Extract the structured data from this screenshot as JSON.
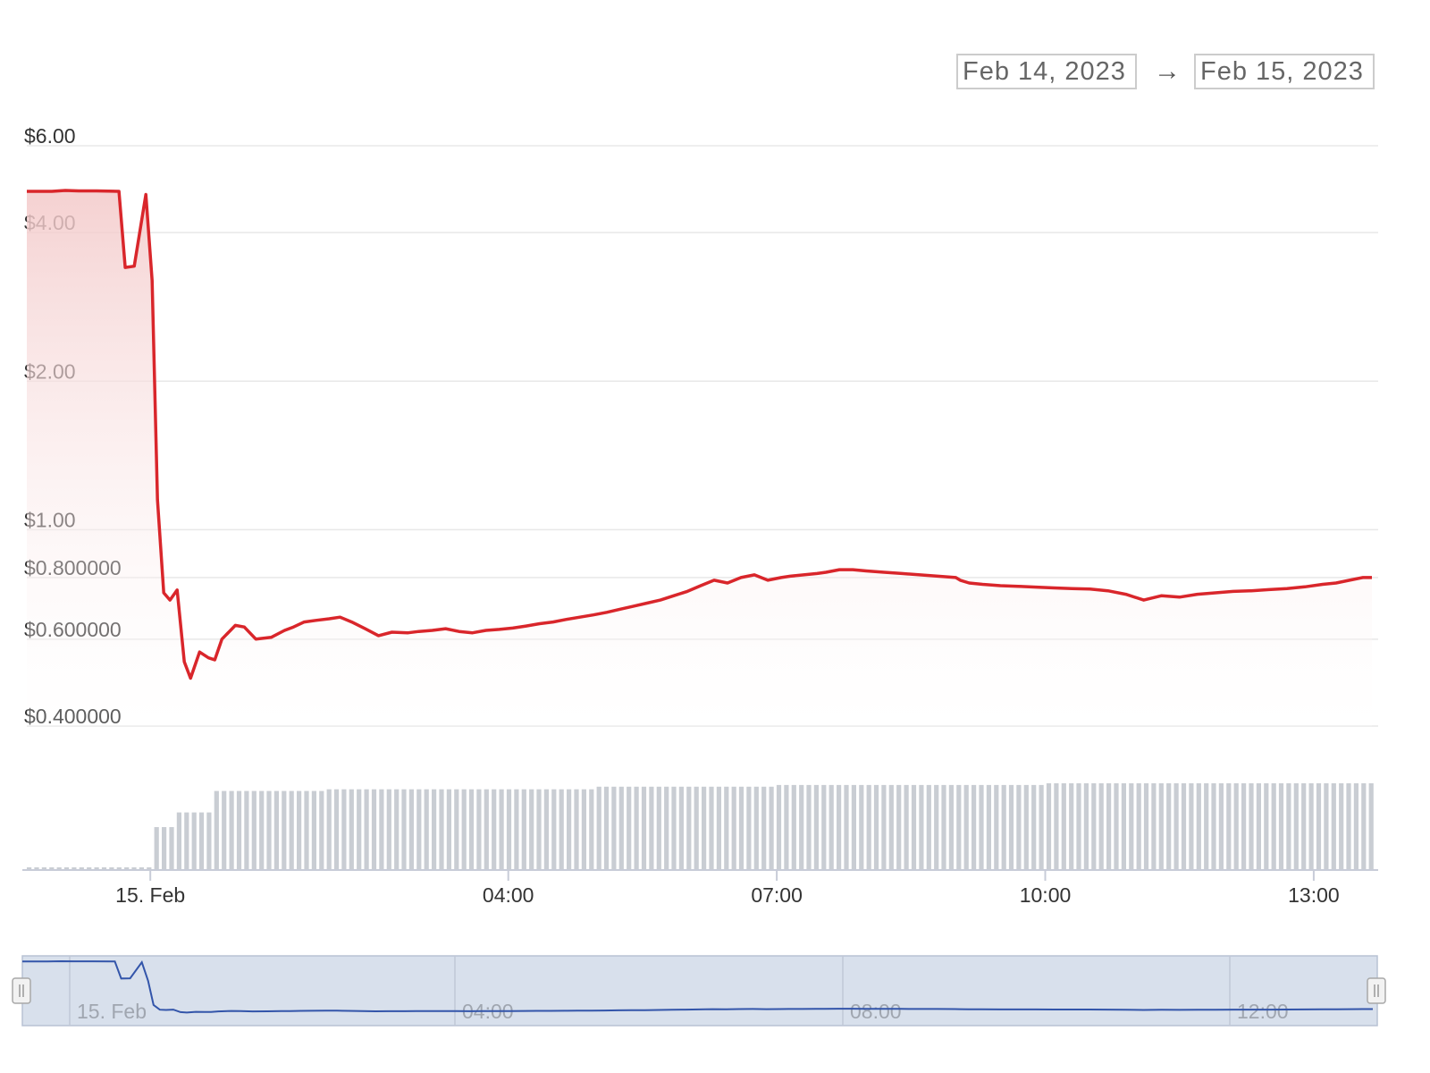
{
  "range_selector": {
    "from": "Feb 14, 2023",
    "arrow": "→",
    "to": "Feb 15, 2023"
  },
  "colors": {
    "line": "#d9262b",
    "area_top": "#f6d2d2",
    "volume": "#c9cdd3",
    "navigator_bg": "#d8e0ec",
    "navigator_line": "#3355aa",
    "grid": "#e8e8e8"
  },
  "chart_data": {
    "type": "line",
    "title": "",
    "xlabel": "",
    "ylabel": "",
    "y_scale": "log",
    "y_ticks": [
      {
        "value": 6.0,
        "label": "$6.00"
      },
      {
        "value": 4.0,
        "label": "$4.00"
      },
      {
        "value": 2.0,
        "label": "$2.00"
      },
      {
        "value": 1.0,
        "label": "$1.00"
      },
      {
        "value": 0.8,
        "label": "$0.800000"
      },
      {
        "value": 0.6,
        "label": "$0.600000"
      },
      {
        "value": 0.4,
        "label": "$0.400000"
      }
    ],
    "x_ticks": [
      {
        "hour": 0,
        "label": "15. Feb"
      },
      {
        "hour": 4,
        "label": "04:00"
      },
      {
        "hour": 7,
        "label": "07:00"
      },
      {
        "hour": 10,
        "label": "10:00"
      },
      {
        "hour": 13,
        "label": "13:00"
      }
    ],
    "x_range_hours": [
      -1.38,
      13.7
    ],
    "series": [
      {
        "type": "line",
        "x_hours": [
          -1.38,
          -1.1,
          -0.95,
          -0.8,
          -0.6,
          -0.35,
          -0.28,
          -0.18,
          -0.05,
          0.02,
          0.08,
          0.15,
          0.22,
          0.3,
          0.38,
          0.45,
          0.55,
          0.65,
          0.72,
          0.8,
          0.95,
          1.05,
          1.18,
          1.35,
          1.5,
          1.6,
          1.72,
          1.85,
          2.0,
          2.12,
          2.25,
          2.4,
          2.55,
          2.7,
          2.88,
          3.0,
          3.15,
          3.3,
          3.45,
          3.6,
          3.75,
          3.9,
          4.05,
          4.2,
          4.35,
          4.5,
          4.65,
          4.8,
          4.95,
          5.1,
          5.25,
          5.4,
          5.55,
          5.7,
          5.85,
          6.0,
          6.15,
          6.3,
          6.45,
          6.6,
          6.75,
          6.9,
          7.05,
          7.15,
          7.3,
          7.45,
          7.55,
          7.7,
          7.85,
          8.0,
          8.2,
          8.4,
          8.6,
          8.8,
          9.0,
          9.05,
          9.15,
          9.3,
          9.5,
          9.7,
          9.9,
          10.1,
          10.3,
          10.5,
          10.7,
          10.9,
          11.1,
          11.3,
          11.5,
          11.7,
          11.9,
          12.1,
          12.3,
          12.5,
          12.7,
          12.9,
          13.1,
          13.25,
          13.4,
          13.55,
          13.65
        ],
        "y": [
          4.85,
          4.85,
          4.87,
          4.86,
          4.86,
          4.85,
          3.4,
          3.42,
          4.78,
          3.2,
          1.15,
          0.745,
          0.72,
          0.755,
          0.54,
          0.5,
          0.565,
          0.55,
          0.545,
          0.6,
          0.64,
          0.635,
          0.6,
          0.605,
          0.625,
          0.635,
          0.65,
          0.655,
          0.66,
          0.665,
          0.65,
          0.63,
          0.61,
          0.62,
          0.618,
          0.622,
          0.625,
          0.63,
          0.622,
          0.618,
          0.625,
          0.628,
          0.632,
          0.638,
          0.645,
          0.65,
          0.658,
          0.665,
          0.672,
          0.68,
          0.69,
          0.7,
          0.71,
          0.72,
          0.735,
          0.75,
          0.77,
          0.79,
          0.78,
          0.8,
          0.81,
          0.79,
          0.8,
          0.805,
          0.81,
          0.815,
          0.82,
          0.83,
          0.83,
          0.825,
          0.82,
          0.815,
          0.81,
          0.805,
          0.8,
          0.79,
          0.78,
          0.775,
          0.77,
          0.768,
          0.765,
          0.762,
          0.76,
          0.758,
          0.752,
          0.74,
          0.72,
          0.735,
          0.73,
          0.74,
          0.745,
          0.75,
          0.752,
          0.756,
          0.76,
          0.766,
          0.775,
          0.78,
          0.79,
          0.8,
          0.8
        ]
      },
      {
        "type": "volume",
        "bar_count": 180,
        "relative_levels": [
          {
            "from_hour": -1.38,
            "to_hour": 0.05,
            "level": 0.02
          },
          {
            "from_hour": 0.05,
            "to_hour": 0.3,
            "level": 0.49
          },
          {
            "from_hour": 0.3,
            "to_hour": 0.7,
            "level": 0.66
          },
          {
            "from_hour": 0.7,
            "to_hour": 2.0,
            "level": 0.91
          },
          {
            "from_hour": 2.0,
            "to_hour": 5.0,
            "level": 0.93
          },
          {
            "from_hour": 5.0,
            "to_hour": 7.0,
            "level": 0.96
          },
          {
            "from_hour": 7.0,
            "to_hour": 10.0,
            "level": 0.98
          },
          {
            "from_hour": 10.0,
            "to_hour": 13.7,
            "level": 1.0
          }
        ]
      }
    ],
    "grid": true,
    "legend": "none"
  },
  "navigator": {
    "x_ticks": [
      {
        "label": "15. Feb"
      },
      {
        "label": "04:00"
      },
      {
        "label": "08:00"
      },
      {
        "label": "12:00"
      }
    ],
    "handles": [
      "left",
      "right"
    ]
  }
}
